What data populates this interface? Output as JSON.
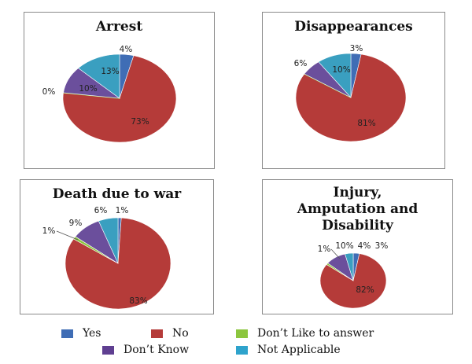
{
  "chart_data": [
    {
      "type": "pie",
      "title": "Arrest",
      "categories": [
        "Yes",
        "No",
        "Don't Like to answer",
        "Don't Know",
        "Not Applicable"
      ],
      "values": [
        4,
        73,
        0,
        10,
        13
      ],
      "labels": [
        "4%",
        "73%",
        "0%",
        "10%",
        "13%"
      ]
    },
    {
      "type": "pie",
      "title": "Disappearances",
      "categories": [
        "Yes",
        "No",
        "Don't Like to answer",
        "Don't Know",
        "Not Applicable"
      ],
      "values": [
        3,
        81,
        0,
        6,
        10
      ],
      "labels": [
        "3%",
        "81%",
        "",
        "6%",
        "10%"
      ]
    },
    {
      "type": "pie",
      "title": "Death due to war",
      "categories": [
        "Yes",
        "No",
        "Don't Like to answer",
        "Don't Know",
        "Not Applicable"
      ],
      "values": [
        1,
        83,
        1,
        9,
        6
      ],
      "labels": [
        "1%",
        "83%",
        "1%",
        "9%",
        "6%"
      ]
    },
    {
      "type": "pie",
      "title": "Injury, Amputation and Disability",
      "title_lines": [
        "Injury,",
        "Amputation and",
        "Disability"
      ],
      "categories": [
        "Yes",
        "No",
        "Don't Like to answer",
        "Don't Know",
        "Not Applicable"
      ],
      "values": [
        3,
        82,
        1,
        10,
        4
      ],
      "labels": [
        "3%",
        "82%",
        "1%",
        "10%",
        "4%"
      ]
    }
  ],
  "legend": {
    "position": "bottom",
    "items": [
      {
        "label": "Yes",
        "color": "#3f6db5"
      },
      {
        "label": "No",
        "color": "#b53b39"
      },
      {
        "label": "Don’t Like to answer",
        "color": "#8cc63f"
      },
      {
        "label": "Don’t Know",
        "color": "#5f3f91"
      },
      {
        "label": "Not Applicable",
        "color": "#2ea3cc"
      }
    ]
  },
  "slice_colors": [
    "#3f6db5",
    "#b53b39",
    "#8cc63f",
    "#6b4f9c",
    "#3a9fc0"
  ]
}
